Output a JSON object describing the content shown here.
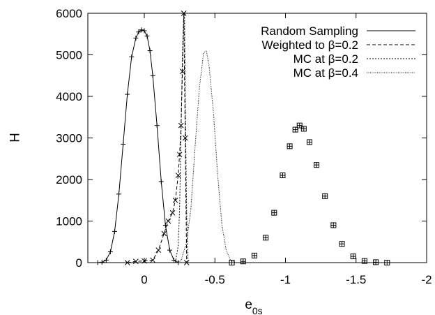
{
  "chart_data": {
    "type": "line",
    "title": "",
    "xlabel": "e",
    "xlabel_sub": "0s",
    "ylabel": "H",
    "xlim": [
      0.4,
      -2
    ],
    "ylim": [
      0,
      6000
    ],
    "x_reversed": true,
    "xticks": [
      0,
      -0.5,
      -1,
      -1.5,
      -2
    ],
    "xtick_labels": [
      "0",
      "-0.5",
      "-1",
      "-1.5",
      "-2"
    ],
    "yticks": [
      0,
      1000,
      2000,
      3000,
      4000,
      5000,
      6000
    ],
    "ytick_labels": [
      "0",
      "1000",
      "2000",
      "3000",
      "4000",
      "5000",
      "6000"
    ],
    "grid": false,
    "legend_position": "top-right",
    "series": [
      {
        "name": "Random Sampling",
        "style": "solid",
        "marker": "plus",
        "x": [
          0.33,
          0.3,
          0.27,
          0.24,
          0.21,
          0.18,
          0.15,
          0.12,
          0.09,
          0.06,
          0.04,
          0.02,
          0.0,
          -0.02,
          -0.04,
          -0.06,
          -0.09,
          -0.12,
          -0.15,
          -0.18,
          -0.21,
          -0.24
        ],
        "y": [
          0,
          10,
          60,
          260,
          750,
          1650,
          2850,
          4050,
          4950,
          5400,
          5550,
          5600,
          5580,
          5450,
          5100,
          4500,
          3300,
          1950,
          900,
          300,
          60,
          0
        ]
      },
      {
        "name": "Weighted to β=0.2",
        "style": "dashed",
        "marker": "x",
        "x": [
          0.12,
          0.06,
          0.0,
          -0.06,
          -0.1,
          -0.14,
          -0.17,
          -0.2,
          -0.22,
          -0.24,
          -0.25,
          -0.26,
          -0.27,
          -0.28,
          -0.29,
          -0.3
        ],
        "y": [
          0,
          30,
          40,
          60,
          300,
          700,
          1000,
          1200,
          1500,
          2100,
          2600,
          3300,
          4600,
          6000,
          3000,
          0
        ]
      },
      {
        "name": "MC at β=0.2",
        "style": "dotted",
        "x": [
          -0.22,
          -0.24,
          -0.25,
          -0.26,
          -0.27,
          -0.28,
          -0.285,
          -0.29,
          -0.3,
          -0.31
        ],
        "y": [
          0,
          400,
          1300,
          3000,
          5000,
          6000,
          6000,
          4000,
          1200,
          0
        ]
      },
      {
        "name": "MC at β=0.4",
        "style": "finedotted",
        "x": [
          -0.22,
          -0.26,
          -0.3,
          -0.33,
          -0.36,
          -0.39,
          -0.42,
          -0.44,
          -0.46,
          -0.49,
          -0.52,
          -0.55,
          -0.58,
          -0.61,
          -0.65
        ],
        "y": [
          0,
          40,
          500,
          1300,
          2800,
          4200,
          5050,
          5100,
          4700,
          3600,
          2100,
          900,
          300,
          60,
          0
        ]
      },
      {
        "name": "",
        "style": "none",
        "marker": "boxed",
        "x": [
          -0.62,
          -0.7,
          -0.78,
          -0.86,
          -0.92,
          -0.98,
          -1.03,
          -1.07,
          -1.1,
          -1.13,
          -1.17,
          -1.22,
          -1.28,
          -1.34,
          -1.4,
          -1.48,
          -1.56,
          -1.64,
          -1.72
        ],
        "y": [
          0,
          30,
          170,
          600,
          1200,
          2100,
          2800,
          3200,
          3300,
          3220,
          2900,
          2350,
          1600,
          900,
          450,
          150,
          40,
          10,
          0
        ]
      }
    ]
  }
}
